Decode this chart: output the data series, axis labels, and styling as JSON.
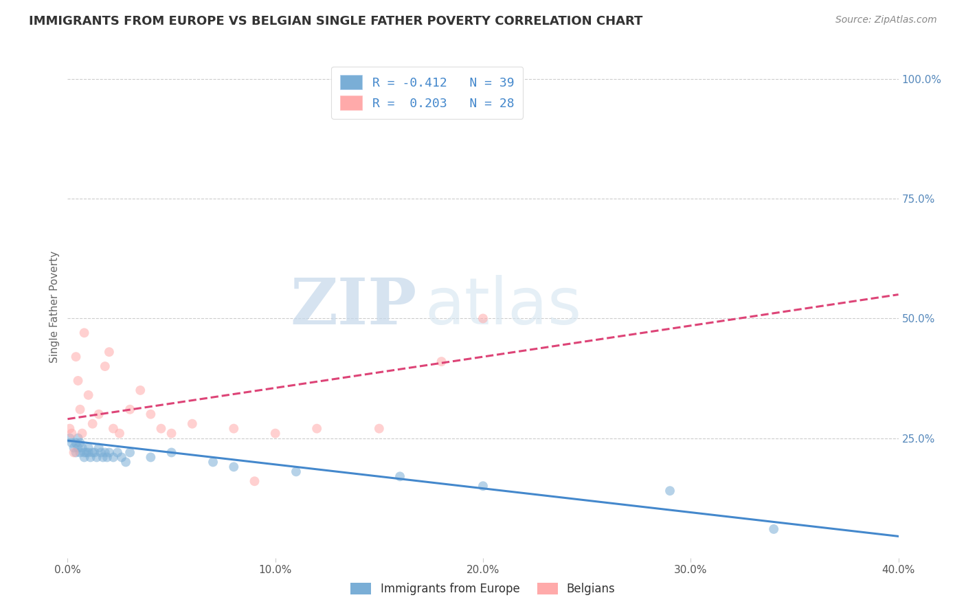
{
  "title": "IMMIGRANTS FROM EUROPE VS BELGIAN SINGLE FATHER POVERTY CORRELATION CHART",
  "source": "Source: ZipAtlas.com",
  "ylabel": "Single Father Poverty",
  "xlim": [
    0.0,
    0.4
  ],
  "ylim": [
    0.0,
    1.05
  ],
  "xticks": [
    0.0,
    0.1,
    0.2,
    0.3,
    0.4
  ],
  "xticklabels": [
    "0.0%",
    "10.0%",
    "20.0%",
    "30.0%",
    "40.0%"
  ],
  "yticks_right": [
    0.25,
    0.5,
    0.75,
    1.0
  ],
  "ytick_right_labels": [
    "25.0%",
    "50.0%",
    "75.0%",
    "100.0%"
  ],
  "grid_color": "#cccccc",
  "background_color": "#ffffff",
  "title_color": "#333333",
  "title_fontsize": 13,
  "source_fontsize": 10,
  "watermark_zip": "ZIP",
  "watermark_atlas": "atlas",
  "series": [
    {
      "name": "Immigrants from Europe",
      "color": "#7aaed6",
      "R": -0.412,
      "N": 39,
      "points_x": [
        0.001,
        0.002,
        0.003,
        0.004,
        0.004,
        0.005,
        0.005,
        0.006,
        0.006,
        0.007,
        0.008,
        0.008,
        0.009,
        0.01,
        0.01,
        0.011,
        0.012,
        0.013,
        0.014,
        0.015,
        0.016,
        0.017,
        0.018,
        0.019,
        0.02,
        0.022,
        0.024,
        0.026,
        0.028,
        0.03,
        0.04,
        0.05,
        0.07,
        0.08,
        0.11,
        0.16,
        0.2,
        0.29,
        0.34
      ],
      "points_y": [
        0.25,
        0.24,
        0.23,
        0.22,
        0.24,
        0.23,
        0.25,
        0.22,
        0.24,
        0.23,
        0.22,
        0.21,
        0.22,
        0.23,
        0.22,
        0.21,
        0.22,
        0.22,
        0.21,
        0.23,
        0.22,
        0.21,
        0.22,
        0.21,
        0.22,
        0.21,
        0.22,
        0.21,
        0.2,
        0.22,
        0.21,
        0.22,
        0.2,
        0.19,
        0.18,
        0.17,
        0.15,
        0.14,
        0.06
      ],
      "trend_x": [
        0.0,
        0.4
      ],
      "trend_y": [
        0.245,
        0.045
      ],
      "trend_color": "#4488cc",
      "trend_style": "solid"
    },
    {
      "name": "Belgians",
      "color": "#ffaaaa",
      "R": 0.203,
      "N": 28,
      "points_x": [
        0.001,
        0.002,
        0.003,
        0.004,
        0.005,
        0.006,
        0.007,
        0.008,
        0.01,
        0.012,
        0.015,
        0.018,
        0.02,
        0.022,
        0.025,
        0.03,
        0.035,
        0.04,
        0.045,
        0.05,
        0.06,
        0.08,
        0.09,
        0.1,
        0.12,
        0.15,
        0.18,
        0.2
      ],
      "points_y": [
        0.27,
        0.26,
        0.22,
        0.42,
        0.37,
        0.31,
        0.26,
        0.47,
        0.34,
        0.28,
        0.3,
        0.4,
        0.43,
        0.27,
        0.26,
        0.31,
        0.35,
        0.3,
        0.27,
        0.26,
        0.28,
        0.27,
        0.16,
        0.26,
        0.27,
        0.27,
        0.41,
        0.5
      ],
      "trend_x": [
        0.0,
        0.4
      ],
      "trend_y": [
        0.29,
        0.55
      ],
      "trend_color": "#dd4477",
      "trend_style": "dashed"
    }
  ],
  "scatter_alpha": 0.55,
  "scatter_size": 100
}
